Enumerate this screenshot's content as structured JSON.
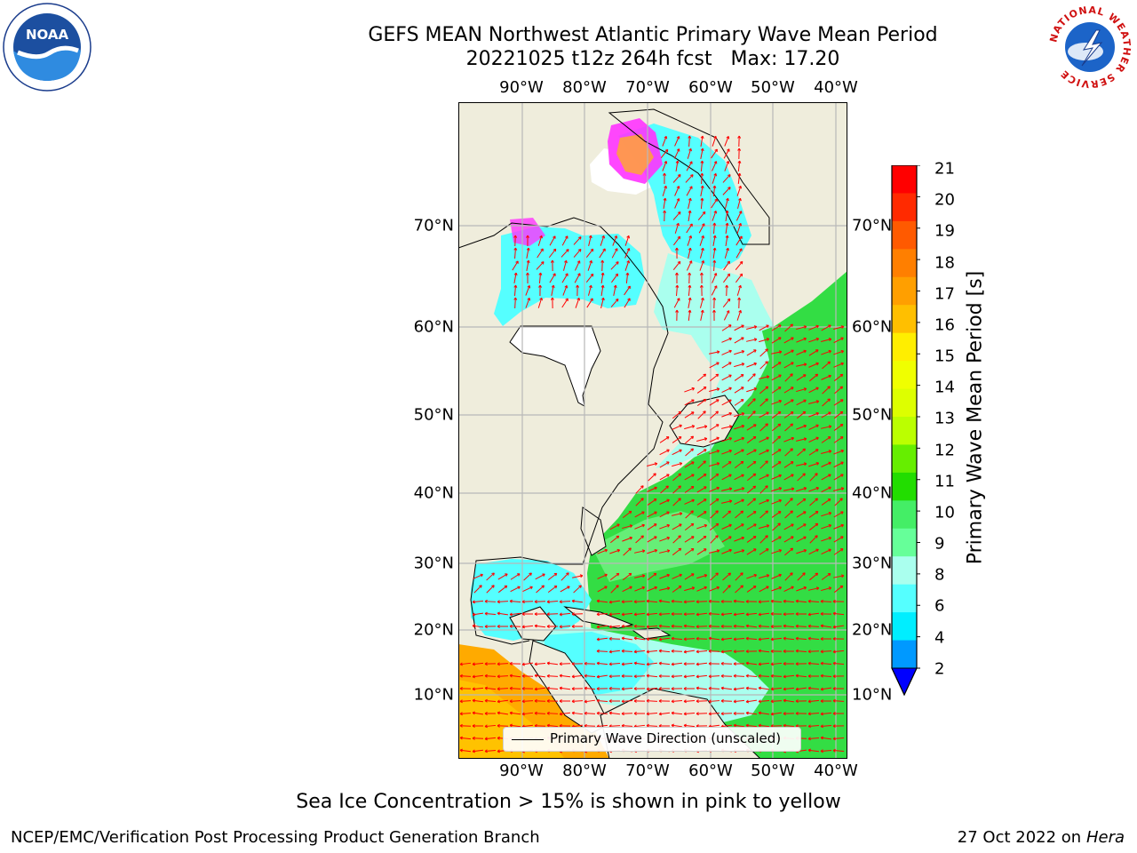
{
  "title": "GEFS MEAN Northwest Atlantic Primary Wave Mean Period",
  "subtitle": "20221025 t12z 264h fcst   Max: 17.20",
  "lon_ticks": [
    "90°W",
    "80°W",
    "70°W",
    "60°W",
    "50°W",
    "40°W"
  ],
  "lat_ticks": [
    "70°N",
    "60°N",
    "50°N",
    "40°N",
    "30°N",
    "20°N",
    "10°N"
  ],
  "colorbar": {
    "label": "Primary Wave Mean Period [s]",
    "ticks": [
      "21",
      "20",
      "19",
      "18",
      "17",
      "16",
      "15",
      "14",
      "13",
      "12",
      "11",
      "10",
      "9",
      "8",
      "6",
      "4",
      "2"
    ],
    "colors": [
      "#ff0000",
      "#ff2a00",
      "#ff5a00",
      "#ff7f00",
      "#ff9f00",
      "#ffbf00",
      "#ffee00",
      "#f0ff00",
      "#ddff00",
      "#bbff00",
      "#66ee00",
      "#22dd00",
      "#44ee66",
      "#66ff99",
      "#aaffee",
      "#55ffff",
      "#00eeff",
      "#0099ff",
      "#0000ff"
    ],
    "extend": "min"
  },
  "legend": {
    "label": "Primary Wave Direction (unscaled)"
  },
  "note": "Sea Ice Concentration > 15% is shown in pink to yellow",
  "footer": {
    "credit": "NCEP/EMC/Verification Post Processing Product Generation Branch",
    "date": "27 Oct 2022 on ",
    "host": "Hera"
  },
  "logos": {
    "left": "NOAA",
    "right": "NATIONAL WEATHER SERVICE"
  },
  "map": {
    "extent_lon": [
      -100,
      -40
    ],
    "extent_lat": [
      0,
      80
    ],
    "ocean_colors": {
      "short": "#55ffff",
      "mid": "#aaffee",
      "long": "#33dd44",
      "tropical": "#ffaa00"
    },
    "land_color": "#efeddc",
    "vector_color": "#ff0000"
  }
}
